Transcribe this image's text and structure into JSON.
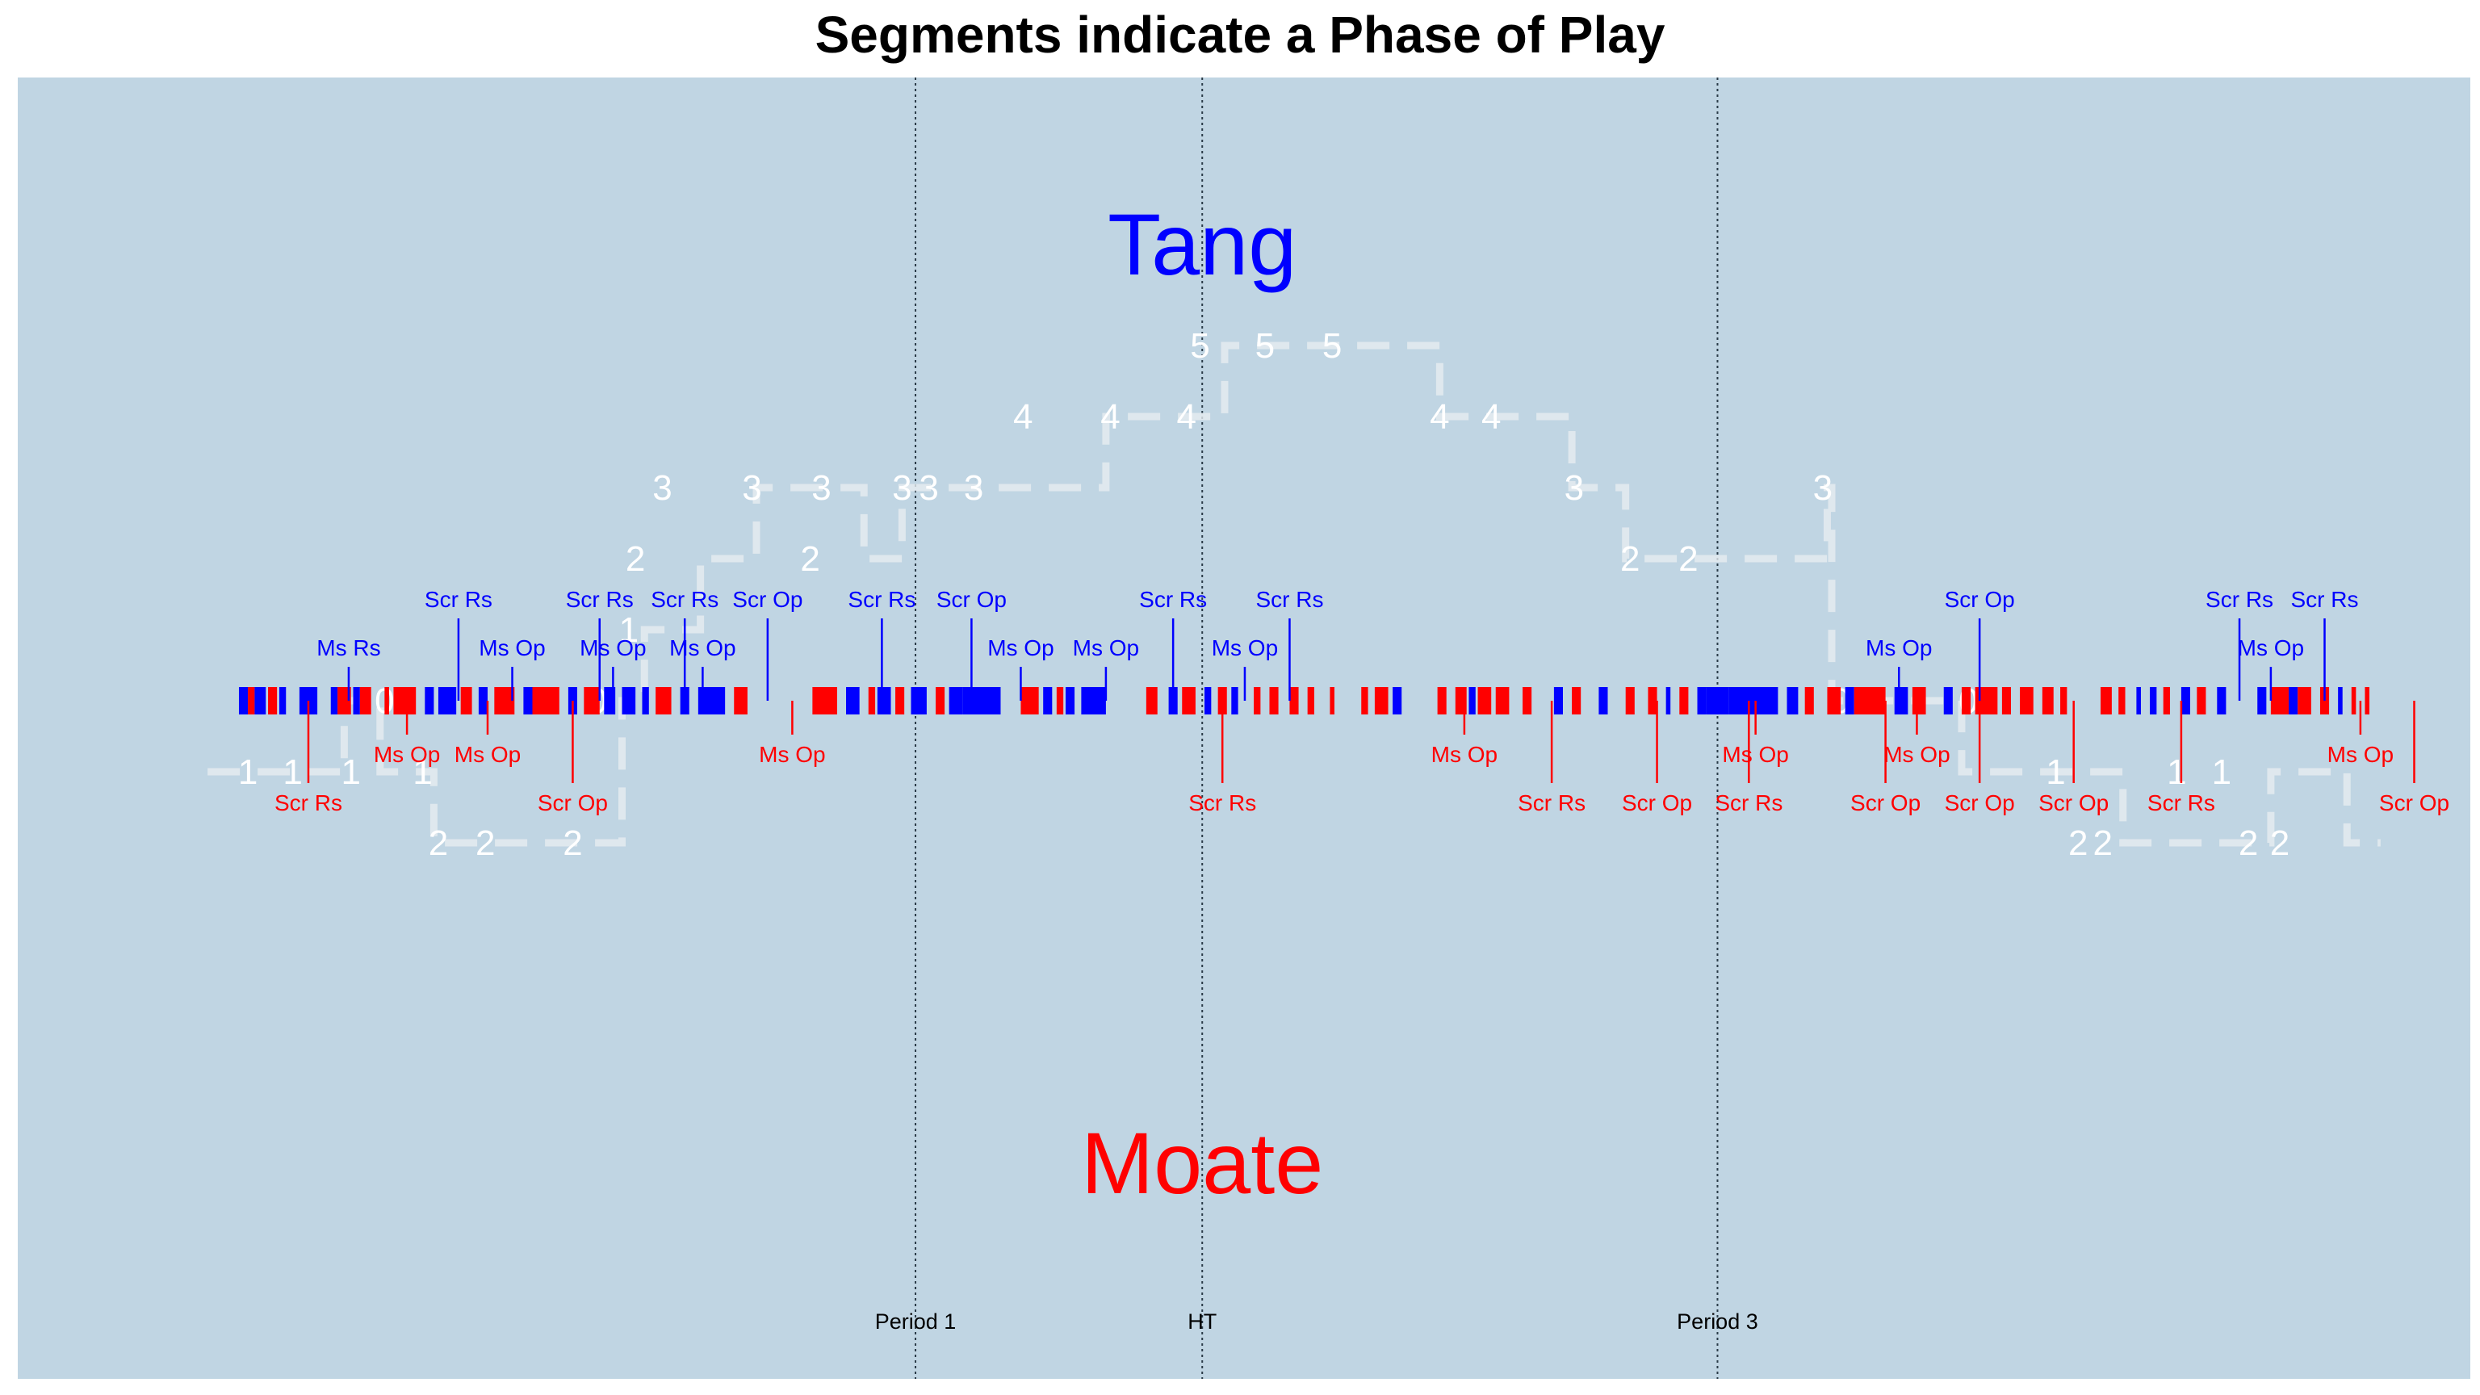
{
  "chart_data": {
    "type": "timeline",
    "title": "Segments indicate a Phase of Play",
    "background_color": "#c0d5e3",
    "xlim": [
      0,
      100
    ],
    "ylim": [
      -6.5,
      6.5
    ],
    "colors": {
      "Tang": "#0000ff",
      "Moate": "#ff0000",
      "margin_line": "#e6ecf0",
      "margin_text": "#ffffff"
    },
    "teams": [
      {
        "name": "Tang",
        "color": "#0000ff",
        "position": "top"
      },
      {
        "name": "Moate",
        "color": "#ff0000",
        "position": "bottom"
      }
    ],
    "period_markers": [
      {
        "x": 35.1,
        "label": "Period 1"
      },
      {
        "x": 47.9,
        "label": "HT"
      },
      {
        "x": 70.9,
        "label": "Period 3"
      }
    ],
    "phases": [
      {
        "start": 4.9,
        "end": 5.3,
        "team": "Tang"
      },
      {
        "start": 5.3,
        "end": 5.6,
        "team": "Moate"
      },
      {
        "start": 5.6,
        "end": 6.1,
        "team": "Tang"
      },
      {
        "start": 6.2,
        "end": 6.6,
        "team": "Moate"
      },
      {
        "start": 6.7,
        "end": 7.0,
        "team": "Tang"
      },
      {
        "start": 7.6,
        "end": 8.4,
        "team": "Tang"
      },
      {
        "start": 9.0,
        "end": 9.3,
        "team": "Tang"
      },
      {
        "start": 9.3,
        "end": 9.9,
        "team": "Moate"
      },
      {
        "start": 10.0,
        "end": 10.3,
        "team": "Tang"
      },
      {
        "start": 10.3,
        "end": 10.8,
        "team": "Moate"
      },
      {
        "start": 11.4,
        "end": 11.6,
        "team": "Moate"
      },
      {
        "start": 11.8,
        "end": 12.8,
        "team": "Moate"
      },
      {
        "start": 13.2,
        "end": 13.6,
        "team": "Tang"
      },
      {
        "start": 13.8,
        "end": 14.6,
        "team": "Tang"
      },
      {
        "start": 14.8,
        "end": 15.3,
        "team": "Moate"
      },
      {
        "start": 15.6,
        "end": 16.0,
        "team": "Tang"
      },
      {
        "start": 16.3,
        "end": 17.2,
        "team": "Moate"
      },
      {
        "start": 17.6,
        "end": 18.0,
        "team": "Tang"
      },
      {
        "start": 18.0,
        "end": 19.2,
        "team": "Moate"
      },
      {
        "start": 19.6,
        "end": 20.0,
        "team": "Tang"
      },
      {
        "start": 20.3,
        "end": 21.0,
        "team": "Moate"
      },
      {
        "start": 21.2,
        "end": 21.7,
        "team": "Tang"
      },
      {
        "start": 22.0,
        "end": 22.6,
        "team": "Tang"
      },
      {
        "start": 22.9,
        "end": 23.2,
        "team": "Tang"
      },
      {
        "start": 23.5,
        "end": 24.2,
        "team": "Moate"
      },
      {
        "start": 24.6,
        "end": 25.0,
        "team": "Tang"
      },
      {
        "start": 25.4,
        "end": 26.6,
        "team": "Tang"
      },
      {
        "start": 27.0,
        "end": 27.6,
        "team": "Moate"
      },
      {
        "start": 30.5,
        "end": 31.6,
        "team": "Moate"
      },
      {
        "start": 32.0,
        "end": 32.6,
        "team": "Tang"
      },
      {
        "start": 33.0,
        "end": 33.3,
        "team": "Moate"
      },
      {
        "start": 33.4,
        "end": 34.0,
        "team": "Tang"
      },
      {
        "start": 34.2,
        "end": 34.6,
        "team": "Moate"
      },
      {
        "start": 34.9,
        "end": 35.6,
        "team": "Tang"
      },
      {
        "start": 36.0,
        "end": 36.4,
        "team": "Moate"
      },
      {
        "start": 36.6,
        "end": 37.2,
        "team": "Tang"
      },
      {
        "start": 37.2,
        "end": 38.9,
        "team": "Tang"
      },
      {
        "start": 39.8,
        "end": 40.6,
        "team": "Moate"
      },
      {
        "start": 40.8,
        "end": 41.2,
        "team": "Tang"
      },
      {
        "start": 41.4,
        "end": 41.7,
        "team": "Moate"
      },
      {
        "start": 41.8,
        "end": 42.2,
        "team": "Tang"
      },
      {
        "start": 42.5,
        "end": 43.6,
        "team": "Tang"
      },
      {
        "start": 45.4,
        "end": 45.9,
        "team": "Moate"
      },
      {
        "start": 46.4,
        "end": 46.8,
        "team": "Tang"
      },
      {
        "start": 47.0,
        "end": 47.6,
        "team": "Moate"
      },
      {
        "start": 48.0,
        "end": 48.3,
        "team": "Tang"
      },
      {
        "start": 48.6,
        "end": 49.0,
        "team": "Moate"
      },
      {
        "start": 49.2,
        "end": 49.5,
        "team": "Tang"
      },
      {
        "start": 50.2,
        "end": 50.5,
        "team": "Moate"
      },
      {
        "start": 50.9,
        "end": 51.3,
        "team": "Moate"
      },
      {
        "start": 51.8,
        "end": 52.2,
        "team": "Moate"
      },
      {
        "start": 52.6,
        "end": 52.9,
        "team": "Moate"
      },
      {
        "start": 53.6,
        "end": 53.8,
        "team": "Moate"
      },
      {
        "start": 55.0,
        "end": 55.3,
        "team": "Moate"
      },
      {
        "start": 55.6,
        "end": 56.2,
        "team": "Moate"
      },
      {
        "start": 56.4,
        "end": 56.8,
        "team": "Tang"
      },
      {
        "start": 58.4,
        "end": 58.8,
        "team": "Moate"
      },
      {
        "start": 59.2,
        "end": 59.7,
        "team": "Moate"
      },
      {
        "start": 59.8,
        "end": 60.1,
        "team": "Tang"
      },
      {
        "start": 60.2,
        "end": 60.8,
        "team": "Moate"
      },
      {
        "start": 61.0,
        "end": 61.6,
        "team": "Moate"
      },
      {
        "start": 62.2,
        "end": 62.6,
        "team": "Moate"
      },
      {
        "start": 63.6,
        "end": 64.0,
        "team": "Tang"
      },
      {
        "start": 64.4,
        "end": 64.8,
        "team": "Moate"
      },
      {
        "start": 65.6,
        "end": 66.0,
        "team": "Tang"
      },
      {
        "start": 66.8,
        "end": 67.2,
        "team": "Moate"
      },
      {
        "start": 67.8,
        "end": 68.2,
        "team": "Moate"
      },
      {
        "start": 68.6,
        "end": 68.8,
        "team": "Tang"
      },
      {
        "start": 69.2,
        "end": 69.6,
        "team": "Moate"
      },
      {
        "start": 70.0,
        "end": 70.4,
        "team": "Tang"
      },
      {
        "start": 70.4,
        "end": 71.4,
        "team": "Tang"
      },
      {
        "start": 71.4,
        "end": 73.6,
        "team": "Tang"
      },
      {
        "start": 74.0,
        "end": 74.5,
        "team": "Tang"
      },
      {
        "start": 74.8,
        "end": 75.2,
        "team": "Moate"
      },
      {
        "start": 75.8,
        "end": 76.4,
        "team": "Moate"
      },
      {
        "start": 76.6,
        "end": 77.0,
        "team": "Tang"
      },
      {
        "start": 77.0,
        "end": 78.4,
        "team": "Moate"
      },
      {
        "start": 78.8,
        "end": 79.4,
        "team": "Tang"
      },
      {
        "start": 79.6,
        "end": 80.2,
        "team": "Moate"
      },
      {
        "start": 81.0,
        "end": 81.4,
        "team": "Tang"
      },
      {
        "start": 81.8,
        "end": 82.2,
        "team": "Moate"
      },
      {
        "start": 82.4,
        "end": 83.4,
        "team": "Moate"
      },
      {
        "start": 83.6,
        "end": 84.0,
        "team": "Moate"
      },
      {
        "start": 84.4,
        "end": 85.0,
        "team": "Moate"
      },
      {
        "start": 85.4,
        "end": 85.9,
        "team": "Moate"
      },
      {
        "start": 86.2,
        "end": 86.5,
        "team": "Moate"
      },
      {
        "start": 88.0,
        "end": 88.5,
        "team": "Moate"
      },
      {
        "start": 88.8,
        "end": 89.1,
        "team": "Moate"
      },
      {
        "start": 89.6,
        "end": 89.8,
        "team": "Tang"
      },
      {
        "start": 90.2,
        "end": 90.5,
        "team": "Tang"
      },
      {
        "start": 90.8,
        "end": 91.1,
        "team": "Moate"
      },
      {
        "start": 91.6,
        "end": 92.0,
        "team": "Tang"
      },
      {
        "start": 92.3,
        "end": 92.7,
        "team": "Moate"
      },
      {
        "start": 93.2,
        "end": 93.6,
        "team": "Tang"
      },
      {
        "start": 95.0,
        "end": 95.4,
        "team": "Tang"
      },
      {
        "start": 95.6,
        "end": 96.4,
        "team": "Moate"
      },
      {
        "start": 96.4,
        "end": 96.8,
        "team": "Tang"
      },
      {
        "start": 96.8,
        "end": 97.4,
        "team": "Moate"
      },
      {
        "start": 97.8,
        "end": 98.2,
        "team": "Moate"
      },
      {
        "start": 98.6,
        "end": 98.8,
        "team": "Tang"
      },
      {
        "start": 99.2,
        "end": 99.4,
        "team": "Moate"
      },
      {
        "start": 99.8,
        "end": 100.0,
        "team": "Moate"
      }
    ],
    "events": [
      {
        "x": 8.0,
        "team": "Moate",
        "label": "Scr Rs",
        "row": 2
      },
      {
        "x": 9.8,
        "team": "Tang",
        "label": "Ms Rs",
        "row": 1
      },
      {
        "x": 12.4,
        "team": "Moate",
        "label": "Ms Op",
        "row": 1
      },
      {
        "x": 14.7,
        "team": "Tang",
        "label": "Scr Rs",
        "row": 2
      },
      {
        "x": 16.0,
        "team": "Moate",
        "label": "Ms Op",
        "row": 1
      },
      {
        "x": 17.1,
        "team": "Tang",
        "label": "Ms Op",
        "row": 1
      },
      {
        "x": 19.8,
        "team": "Moate",
        "label": "Scr Op",
        "row": 2
      },
      {
        "x": 21.0,
        "team": "Tang",
        "label": "Scr Rs",
        "row": 2
      },
      {
        "x": 21.6,
        "team": "Tang",
        "label": "Ms Op",
        "row": 1
      },
      {
        "x": 24.8,
        "team": "Tang",
        "label": "Scr Rs",
        "row": 2
      },
      {
        "x": 25.6,
        "team": "Tang",
        "label": "Ms Op",
        "row": 1
      },
      {
        "x": 28.5,
        "team": "Tang",
        "label": "Scr Op",
        "row": 2
      },
      {
        "x": 29.6,
        "team": "Moate",
        "label": "Ms Op",
        "row": 1
      },
      {
        "x": 33.6,
        "team": "Tang",
        "label": "Scr Rs",
        "row": 2
      },
      {
        "x": 37.6,
        "team": "Tang",
        "label": "Scr Op",
        "row": 2
      },
      {
        "x": 39.8,
        "team": "Tang",
        "label": "Ms Op",
        "row": 1
      },
      {
        "x": 43.6,
        "team": "Tang",
        "label": "Ms Op",
        "row": 1
      },
      {
        "x": 46.6,
        "team": "Tang",
        "label": "Scr Rs",
        "row": 2
      },
      {
        "x": 48.8,
        "team": "Moate",
        "label": "Scr Rs",
        "row": 2
      },
      {
        "x": 49.8,
        "team": "Tang",
        "label": "Ms Op",
        "row": 1
      },
      {
        "x": 51.8,
        "team": "Tang",
        "label": "Scr Rs",
        "row": 2
      },
      {
        "x": 59.6,
        "team": "Moate",
        "label": "Ms Op",
        "row": 1
      },
      {
        "x": 63.5,
        "team": "Moate",
        "label": "Scr Rs",
        "row": 2
      },
      {
        "x": 68.2,
        "team": "Moate",
        "label": "Scr Op",
        "row": 2
      },
      {
        "x": 72.3,
        "team": "Moate",
        "label": "Scr Rs",
        "row": 2
      },
      {
        "x": 72.6,
        "team": "Moate",
        "label": "Ms Op",
        "row": 1
      },
      {
        "x": 79.0,
        "team": "Tang",
        "label": "Ms Op",
        "row": 1
      },
      {
        "x": 79.8,
        "team": "Moate",
        "label": "Ms Op",
        "row": 1
      },
      {
        "x": 78.4,
        "team": "Moate",
        "label": "Scr Op",
        "row": 2
      },
      {
        "x": 82.6,
        "team": "Tang",
        "label": "Scr Op",
        "row": 2
      },
      {
        "x": 82.6,
        "team": "Moate",
        "label": "Scr Op",
        "row": 2
      },
      {
        "x": 86.8,
        "team": "Moate",
        "label": "Scr Op",
        "row": 2
      },
      {
        "x": 91.6,
        "team": "Moate",
        "label": "Scr Rs",
        "row": 2
      },
      {
        "x": 94.2,
        "team": "Tang",
        "label": "Scr Rs",
        "row": 2
      },
      {
        "x": 95.6,
        "team": "Tang",
        "label": "Ms Op",
        "row": 1
      },
      {
        "x": 98.0,
        "team": "Tang",
        "label": "Scr Rs",
        "row": 2
      },
      {
        "x": 99.6,
        "team": "Moate",
        "label": "Ms Op",
        "row": 1
      },
      {
        "x": 102.0,
        "team": "Moate",
        "label": "Scr Op",
        "row": 2
      }
    ],
    "margin_series": {
      "label": "",
      "points": [
        [
          3.5,
          -1
        ],
        [
          5.4,
          -1
        ],
        [
          5.4,
          -1
        ],
        [
          7.5,
          -1
        ],
        [
          7.5,
          -1
        ],
        [
          9.6,
          -1
        ],
        [
          9.6,
          0
        ],
        [
          11.2,
          0
        ],
        [
          11.2,
          -1
        ],
        [
          13.6,
          -1
        ],
        [
          13.6,
          -2
        ],
        [
          18.2,
          -2
        ],
        [
          18.2,
          -2
        ],
        [
          22.0,
          -2
        ],
        [
          22.0,
          0
        ],
        [
          23.0,
          0
        ],
        [
          23.0,
          1
        ],
        [
          25.5,
          1
        ],
        [
          25.5,
          2
        ],
        [
          28.0,
          2
        ],
        [
          28.0,
          3
        ],
        [
          32.8,
          3
        ],
        [
          32.8,
          2
        ],
        [
          34.5,
          2
        ],
        [
          34.5,
          3
        ],
        [
          43.6,
          3
        ],
        [
          43.6,
          4
        ],
        [
          48.9,
          4
        ],
        [
          48.9,
          5
        ],
        [
          58.5,
          5
        ],
        [
          58.5,
          4
        ],
        [
          64.4,
          4
        ],
        [
          64.4,
          3
        ],
        [
          66.8,
          3
        ],
        [
          66.8,
          2
        ],
        [
          75.8,
          2
        ],
        [
          75.8,
          3
        ],
        [
          76.0,
          3
        ],
        [
          76.0,
          0
        ],
        [
          81.8,
          0
        ],
        [
          81.8,
          -1
        ],
        [
          89.0,
          -1
        ],
        [
          89.0,
          -2
        ],
        [
          95.6,
          -2
        ],
        [
          95.6,
          -1
        ],
        [
          99.0,
          -1
        ],
        [
          99.0,
          -2
        ],
        [
          100.5,
          -2
        ]
      ],
      "labels": [
        {
          "x": 5.3,
          "y": -1,
          "text": "1"
        },
        {
          "x": 7.3,
          "y": -1,
          "text": "1"
        },
        {
          "x": 9.9,
          "y": -1,
          "text": "1"
        },
        {
          "x": 11.4,
          "y": 0,
          "text": "0"
        },
        {
          "x": 13.1,
          "y": -1,
          "text": "1"
        },
        {
          "x": 13.8,
          "y": -2,
          "text": "2"
        },
        {
          "x": 15.9,
          "y": -2,
          "text": "2"
        },
        {
          "x": 19.8,
          "y": -2,
          "text": "2"
        },
        {
          "x": 20.9,
          "y": 0,
          "text": "0"
        },
        {
          "x": 22.3,
          "y": 1,
          "text": "1"
        },
        {
          "x": 22.6,
          "y": 2,
          "text": "2"
        },
        {
          "x": 23.8,
          "y": 3,
          "text": "3"
        },
        {
          "x": 27.8,
          "y": 3,
          "text": "3"
        },
        {
          "x": 30.4,
          "y": 2,
          "text": "2"
        },
        {
          "x": 30.9,
          "y": 3,
          "text": "3"
        },
        {
          "x": 34.5,
          "y": 3,
          "text": "3"
        },
        {
          "x": 35.7,
          "y": 3,
          "text": "3"
        },
        {
          "x": 37.7,
          "y": 3,
          "text": "3"
        },
        {
          "x": 39.9,
          "y": 4,
          "text": "4"
        },
        {
          "x": 43.8,
          "y": 4,
          "text": "4"
        },
        {
          "x": 47.2,
          "y": 4,
          "text": "4"
        },
        {
          "x": 47.8,
          "y": 5,
          "text": "5"
        },
        {
          "x": 50.7,
          "y": 5,
          "text": "5"
        },
        {
          "x": 53.7,
          "y": 5,
          "text": "5"
        },
        {
          "x": 58.5,
          "y": 4,
          "text": "4"
        },
        {
          "x": 60.8,
          "y": 4,
          "text": "4"
        },
        {
          "x": 64.5,
          "y": 3,
          "text": "3"
        },
        {
          "x": 67.0,
          "y": 2,
          "text": "2"
        },
        {
          "x": 69.6,
          "y": 2,
          "text": "2"
        },
        {
          "x": 75.6,
          "y": 3,
          "text": "3"
        },
        {
          "x": 76.4,
          "y": 0,
          "text": "0"
        },
        {
          "x": 82.1,
          "y": 0,
          "text": "0"
        },
        {
          "x": 86.0,
          "y": -1,
          "text": "1"
        },
        {
          "x": 87.0,
          "y": -2,
          "text": "2"
        },
        {
          "x": 88.1,
          "y": -2,
          "text": "2"
        },
        {
          "x": 91.4,
          "y": -1,
          "text": "1"
        },
        {
          "x": 93.4,
          "y": -1,
          "text": "1"
        },
        {
          "x": 94.6,
          "y": -2,
          "text": "2"
        },
        {
          "x": 96.0,
          "y": -2,
          "text": "2"
        }
      ]
    }
  }
}
